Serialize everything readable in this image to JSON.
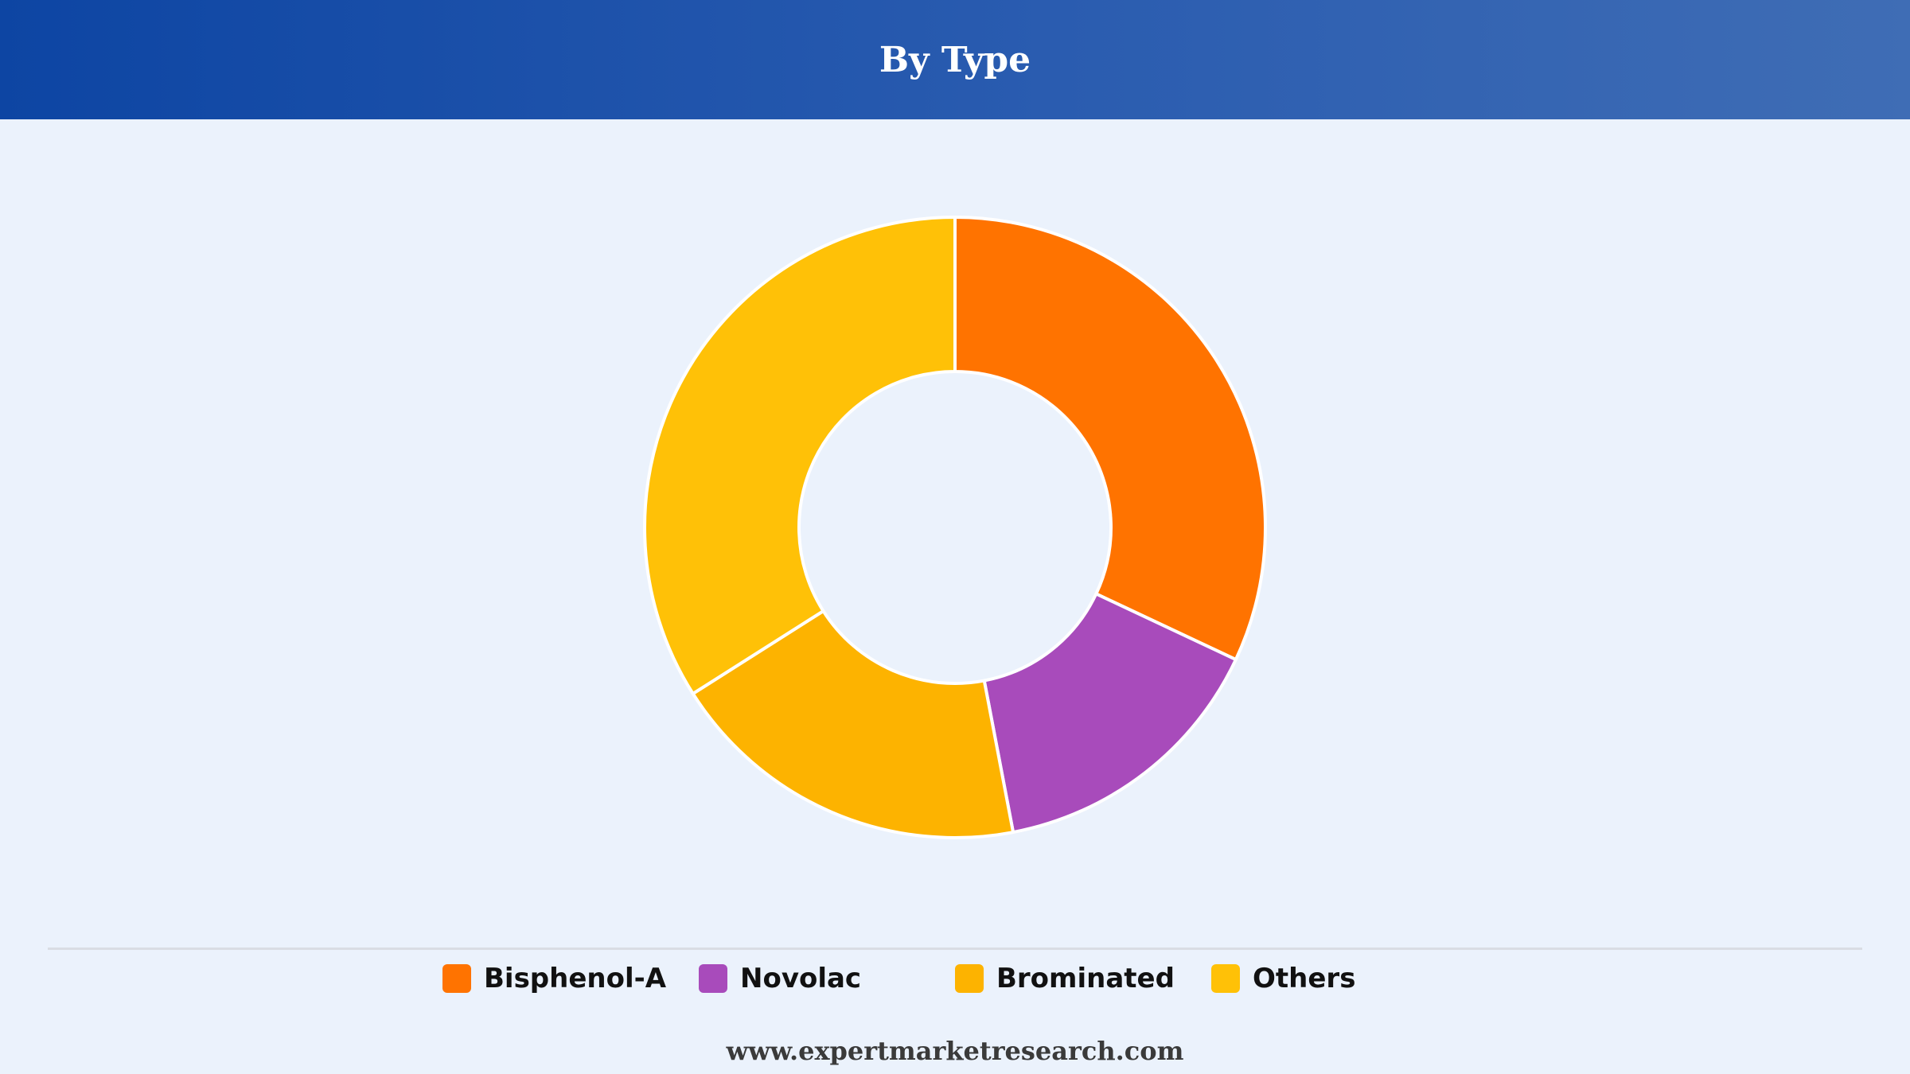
{
  "header": {
    "title": "By Type"
  },
  "chart_data": {
    "type": "pie",
    "variant": "donut",
    "title": "By Type",
    "categories": [
      "Bisphenol-A",
      "Novolac",
      "Brominated",
      "Others"
    ],
    "values": [
      32,
      15,
      19,
      34
    ],
    "colors": [
      "#ff7300",
      "#a84bbb",
      "#fdb300",
      "#ffc107"
    ],
    "legend_position": "bottom"
  },
  "legend": {
    "items": [
      {
        "label": "Bisphenol-A",
        "color": "#ff7300"
      },
      {
        "label": "Novolac",
        "color": "#a84bbb"
      },
      {
        "label": "Brominated",
        "color": "#fdb300"
      },
      {
        "label": "Others",
        "color": "#ffc107"
      }
    ]
  },
  "footer": {
    "text": "www.expertmarketresearch.com"
  }
}
